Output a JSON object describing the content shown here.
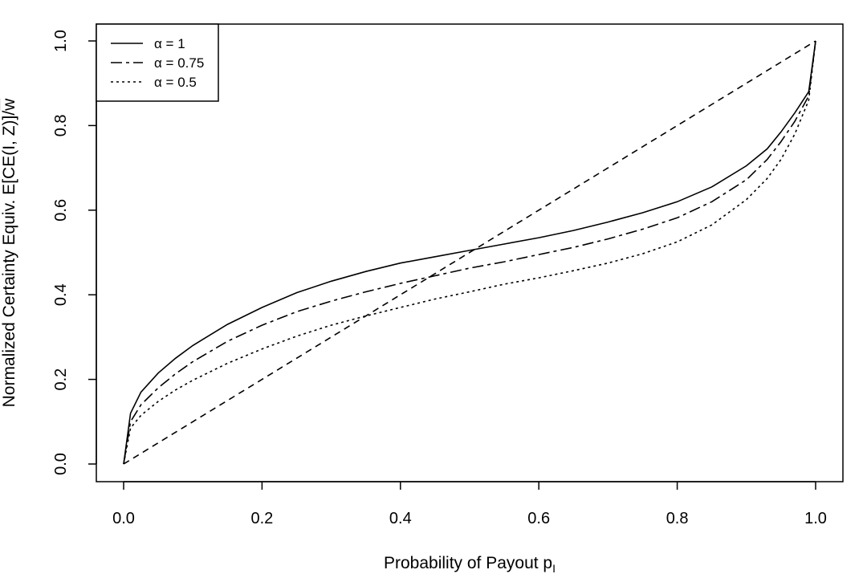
{
  "chart_data": {
    "type": "line",
    "title": "",
    "xlabel": "Probability of Payout p",
    "xlabel_sub": "I",
    "ylabel": "Normalized Certainty Equiv. E[CE(I, Z)]/",
    "ylabel_overline": "w",
    "xlim": [
      0,
      1
    ],
    "ylim": [
      0,
      1
    ],
    "xticks": [
      "0.0",
      "0.2",
      "0.4",
      "0.6",
      "0.8",
      "1.0"
    ],
    "yticks": [
      "0.0",
      "0.2",
      "0.4",
      "0.6",
      "0.8",
      "1.0"
    ],
    "grid": false,
    "legend_position": "top-left",
    "series": [
      {
        "name": "α = 1",
        "dash": "solid",
        "x": [
          0,
          0.01,
          0.025,
          0.05,
          0.075,
          0.1,
          0.15,
          0.2,
          0.25,
          0.3,
          0.35,
          0.4,
          0.45,
          0.5,
          0.55,
          0.6,
          0.65,
          0.7,
          0.75,
          0.8,
          0.85,
          0.9,
          0.93,
          0.95,
          0.97,
          0.99,
          1.0
        ],
        "y": [
          0,
          0.12,
          0.17,
          0.215,
          0.25,
          0.28,
          0.33,
          0.37,
          0.405,
          0.432,
          0.455,
          0.475,
          0.49,
          0.505,
          0.52,
          0.535,
          0.552,
          0.572,
          0.594,
          0.62,
          0.655,
          0.705,
          0.745,
          0.785,
          0.83,
          0.88,
          1.0
        ]
      },
      {
        "name": "α = 0.75",
        "dash": "longdash",
        "x": [
          0,
          0.01,
          0.025,
          0.05,
          0.075,
          0.1,
          0.15,
          0.2,
          0.25,
          0.3,
          0.35,
          0.4,
          0.45,
          0.5,
          0.55,
          0.6,
          0.65,
          0.7,
          0.75,
          0.8,
          0.85,
          0.9,
          0.93,
          0.95,
          0.97,
          0.99,
          1.0
        ],
        "y": [
          0,
          0.1,
          0.14,
          0.18,
          0.213,
          0.242,
          0.29,
          0.328,
          0.36,
          0.385,
          0.407,
          0.427,
          0.445,
          0.463,
          0.478,
          0.495,
          0.512,
          0.532,
          0.555,
          0.582,
          0.62,
          0.672,
          0.72,
          0.762,
          0.81,
          0.87,
          1.0
        ]
      },
      {
        "name": "α = 0.5",
        "dash": "dotted",
        "x": [
          0,
          0.01,
          0.025,
          0.05,
          0.075,
          0.1,
          0.15,
          0.2,
          0.25,
          0.3,
          0.35,
          0.4,
          0.45,
          0.5,
          0.55,
          0.6,
          0.65,
          0.7,
          0.75,
          0.8,
          0.85,
          0.9,
          0.93,
          0.95,
          0.97,
          0.99,
          1.0
        ],
        "y": [
          0,
          0.085,
          0.115,
          0.148,
          0.175,
          0.198,
          0.238,
          0.272,
          0.302,
          0.328,
          0.35,
          0.37,
          0.39,
          0.407,
          0.425,
          0.44,
          0.457,
          0.475,
          0.497,
          0.525,
          0.565,
          0.625,
          0.675,
          0.72,
          0.78,
          0.86,
          1.0
        ]
      },
      {
        "name": "",
        "dash": "dashed",
        "x": [
          0,
          1
        ],
        "y": [
          0,
          1
        ]
      }
    ]
  }
}
